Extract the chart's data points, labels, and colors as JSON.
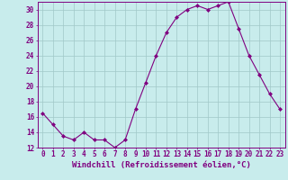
{
  "x": [
    0,
    1,
    2,
    3,
    4,
    5,
    6,
    7,
    8,
    9,
    10,
    11,
    12,
    13,
    14,
    15,
    16,
    17,
    18,
    19,
    20,
    21,
    22,
    23
  ],
  "y": [
    16.5,
    15.0,
    13.5,
    13.0,
    14.0,
    13.0,
    13.0,
    12.0,
    13.0,
    17.0,
    20.5,
    24.0,
    27.0,
    29.0,
    30.0,
    30.5,
    30.0,
    30.5,
    31.0,
    27.5,
    24.0,
    21.5,
    19.0,
    17.0
  ],
  "line_color": "#800080",
  "marker": "D",
  "marker_size": 2,
  "bg_color": "#c8ecec",
  "grid_color": "#a0c8c8",
  "xlabel": "Windchill (Refroidissement éolien,°C)",
  "ylim": [
    12,
    31
  ],
  "xlim": [
    -0.5,
    23.5
  ],
  "yticks": [
    12,
    14,
    16,
    18,
    20,
    22,
    24,
    26,
    28,
    30
  ],
  "xticks": [
    0,
    1,
    2,
    3,
    4,
    5,
    6,
    7,
    8,
    9,
    10,
    11,
    12,
    13,
    14,
    15,
    16,
    17,
    18,
    19,
    20,
    21,
    22,
    23
  ],
  "tick_color": "#800080",
  "tick_fontsize": 5.5,
  "xlabel_fontsize": 6.5,
  "spine_color": "#800080",
  "linewidth": 0.8
}
